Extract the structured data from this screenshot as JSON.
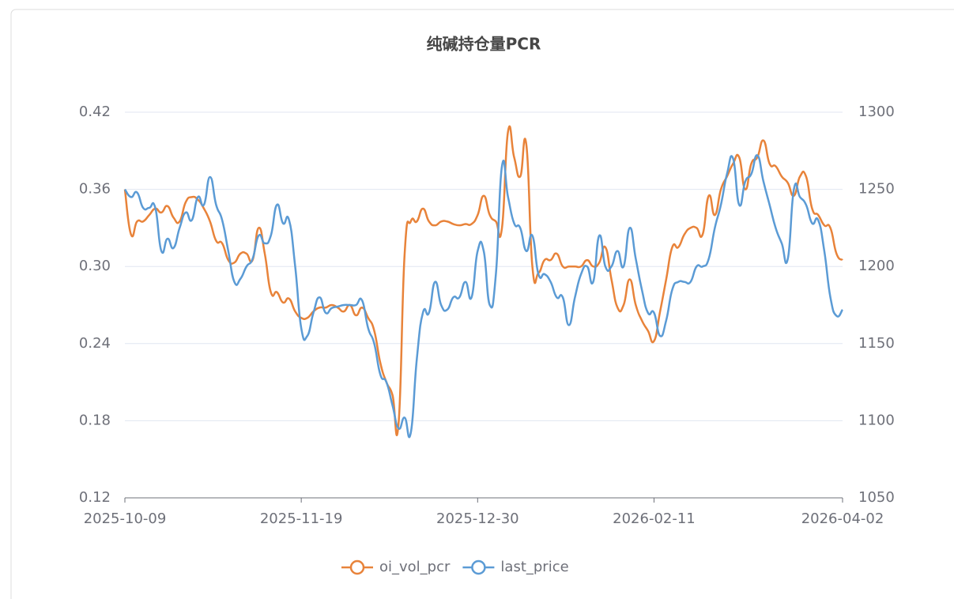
{
  "chart_data": {
    "type": "line",
    "title": "纯碱持仓量PCR",
    "categories": [
      "2025-10-09",
      null,
      null,
      null,
      null,
      null,
      null,
      null,
      null,
      null,
      null,
      null,
      null,
      null,
      null,
      null,
      null,
      null,
      null,
      null,
      null,
      null,
      null,
      null,
      null,
      null,
      null,
      null,
      null,
      "2025-11-19",
      null,
      null,
      null,
      null,
      null,
      null,
      null,
      null,
      null,
      null,
      null,
      null,
      null,
      null,
      null,
      null,
      null,
      null,
      null,
      null,
      null,
      null,
      null,
      null,
      null,
      null,
      null,
      null,
      "2025-12-30",
      null,
      null,
      null,
      null,
      null,
      null,
      null,
      null,
      null,
      null,
      null,
      null,
      null,
      null,
      null,
      null,
      null,
      null,
      null,
      null,
      null,
      null,
      null,
      null,
      null,
      null,
      null,
      null,
      "2026-02-11",
      null,
      null,
      null,
      null,
      null,
      null,
      null,
      null,
      null,
      null,
      null,
      null,
      null,
      null,
      null,
      null,
      null,
      null,
      null,
      null,
      null,
      null,
      null,
      null,
      null,
      null,
      null,
      null,
      null,
      null,
      "2026-04-02"
    ],
    "series": [
      {
        "name": "oi_vol_pcr",
        "color": "#e8833a",
        "axis": "y",
        "values": [
          0.36,
          0.325,
          0.335,
          0.335,
          0.34,
          0.345,
          0.342,
          0.347,
          0.338,
          0.335,
          0.35,
          0.354,
          0.352,
          0.345,
          0.335,
          0.32,
          0.318,
          0.305,
          0.303,
          0.31,
          0.31,
          0.305,
          0.33,
          0.31,
          0.28,
          0.28,
          0.272,
          0.275,
          0.265,
          0.26,
          0.26,
          0.265,
          0.268,
          0.268,
          0.27,
          0.268,
          0.265,
          0.27,
          0.262,
          0.268,
          0.26,
          0.25,
          0.225,
          0.21,
          0.2,
          0.178,
          0.31,
          0.335,
          0.335,
          0.345,
          0.335,
          0.332,
          0.335,
          0.335,
          0.333,
          0.332,
          0.333,
          0.333,
          0.34,
          0.355,
          0.34,
          0.335,
          0.33,
          0.405,
          0.385,
          0.37,
          0.395,
          0.3,
          0.295,
          0.305,
          0.305,
          0.31,
          0.3,
          0.3,
          0.3,
          0.3,
          0.305,
          0.3,
          0.303,
          0.315,
          0.29,
          0.268,
          0.27,
          0.29,
          0.27,
          0.258,
          0.25,
          0.242,
          0.265,
          0.29,
          0.315,
          0.315,
          0.325,
          0.33,
          0.33,
          0.325,
          0.355,
          0.34,
          0.36,
          0.37,
          0.38,
          0.385,
          0.36,
          0.38,
          0.385,
          0.398,
          0.38,
          0.378,
          0.37,
          0.365,
          0.355,
          0.37,
          0.37,
          0.345,
          0.34,
          0.332,
          0.33,
          0.31,
          0.305
        ]
      },
      {
        "name": "last_price",
        "color": "#5b9bd5",
        "axis": "y2",
        "values": [
          1250,
          1245,
          1248,
          1238,
          1238,
          1238,
          1210,
          1218,
          1212,
          1225,
          1235,
          1230,
          1245,
          1240,
          1258,
          1240,
          1230,
          1210,
          1190,
          1192,
          1200,
          1205,
          1220,
          1215,
          1220,
          1240,
          1228,
          1230,
          1200,
          1160,
          1155,
          1170,
          1180,
          1170,
          1173,
          1174,
          1175,
          1175,
          1175,
          1178,
          1160,
          1150,
          1130,
          1125,
          1110,
          1095,
          1102,
          1092,
          1140,
          1170,
          1170,
          1190,
          1175,
          1172,
          1180,
          1180,
          1190,
          1180,
          1210,
          1210,
          1175,
          1195,
          1265,
          1245,
          1228,
          1225,
          1210,
          1220,
          1195,
          1195,
          1190,
          1180,
          1180,
          1162,
          1180,
          1195,
          1200,
          1190,
          1220,
          1200,
          1200,
          1210,
          1200,
          1225,
          1205,
          1185,
          1170,
          1170,
          1155,
          1165,
          1185,
          1190,
          1190,
          1190,
          1200,
          1200,
          1205,
          1225,
          1240,
          1260,
          1270,
          1240,
          1255,
          1260,
          1272,
          1255,
          1240,
          1225,
          1215,
          1205,
          1250,
          1245,
          1240,
          1228,
          1230,
          1210,
          1180,
          1168,
          1172
        ]
      }
    ],
    "ylim": [
      0.12,
      0.42
    ],
    "yticks": [
      0.12,
      0.18,
      0.24,
      {
        "value": 0.3,
        "label": "0.30"
      },
      0.36,
      0.42
    ],
    "y2lim": [
      1050,
      1300
    ],
    "y2ticks": [
      1050,
      1100,
      1150,
      1200,
      1250,
      1300
    ],
    "grid": true
  }
}
